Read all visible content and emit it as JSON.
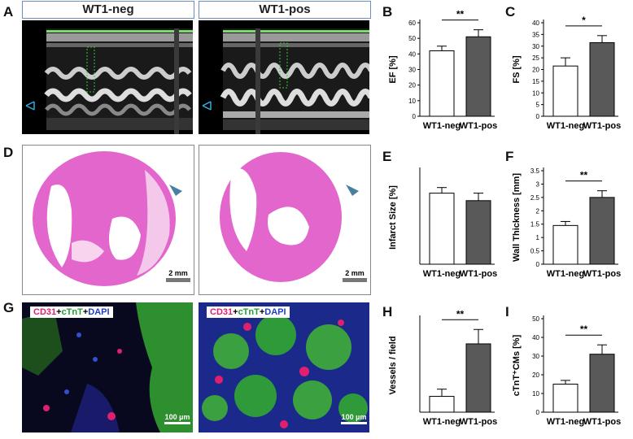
{
  "panel_letters": {
    "A": "A",
    "B": "B",
    "C": "C",
    "D": "D",
    "E": "E",
    "F": "F",
    "G": "G",
    "H": "H",
    "I": "I"
  },
  "echo": {
    "left_header": "WT1-neg",
    "right_header": "WT1-pos"
  },
  "histology": {
    "scale_left": "2 mm",
    "scale_right": "2 mm"
  },
  "immuno": {
    "label_parts": [
      {
        "text": "CD31",
        "color": "#e0206e"
      },
      {
        "text": "+",
        "color": "#000000"
      },
      {
        "text": "cTnT",
        "color": "#1aa033"
      },
      {
        "text": "+",
        "color": "#000000"
      },
      {
        "text": "DAPI",
        "color": "#1f3fc8"
      }
    ],
    "scale_left": "100 µm",
    "scale_right": "100 µm"
  },
  "colors": {
    "neg_bar": "#ffffff",
    "pos_bar": "#595959",
    "stain_pink": "#e266cc",
    "arrow": "#4a7fa0"
  },
  "chart_data": [
    {
      "id": "B",
      "type": "bar",
      "categories": [
        "WT1-neg",
        "WT1-pos"
      ],
      "values": [
        42,
        51
      ],
      "errors": [
        3,
        4.5
      ],
      "ylabel": "EF [%]",
      "ylim": [
        0,
        60
      ],
      "yticks": [
        0,
        10,
        20,
        30,
        40,
        50,
        60
      ],
      "significance": "**"
    },
    {
      "id": "C",
      "type": "bar",
      "categories": [
        "WT1-neg",
        "WT1-pos"
      ],
      "values": [
        21.5,
        31.5
      ],
      "errors": [
        3.5,
        3
      ],
      "ylabel": "FS [%]",
      "ylim": [
        0,
        40
      ],
      "yticks": [
        0,
        5,
        10,
        15,
        20,
        25,
        30,
        35,
        40
      ],
      "significance": "*"
    },
    {
      "id": "E",
      "type": "bar",
      "categories": [
        "WT1-neg",
        "WT1-pos"
      ],
      "values": [
        38,
        34
      ],
      "errors": [
        3,
        4
      ],
      "ylabel": "Infarct Size [%]",
      "ylim": [
        0,
        50
      ],
      "yticks": [],
      "significance": ""
    },
    {
      "id": "F",
      "type": "bar",
      "categories": [
        "WT1-neg",
        "WT1-pos"
      ],
      "values": [
        1.45,
        2.5
      ],
      "errors": [
        0.15,
        0.25
      ],
      "ylabel": "Wall Thickness [mm]",
      "ylim": [
        0,
        3.5
      ],
      "yticks": [
        0,
        0.5,
        1,
        1.5,
        2,
        2.5,
        3,
        3.5
      ],
      "significance": "**"
    },
    {
      "id": "H",
      "type": "bar",
      "categories": [
        "WT1-neg",
        "WT1-pos"
      ],
      "values": [
        22,
        95
      ],
      "errors": [
        10,
        20
      ],
      "ylabel": "Vessels / field",
      "ylim": [
        0,
        130
      ],
      "yticks": [],
      "significance": "**"
    },
    {
      "id": "I",
      "type": "bar",
      "categories": [
        "WT1-neg",
        "WT1-pos"
      ],
      "values": [
        15,
        31
      ],
      "errors": [
        2,
        5
      ],
      "ylabel": "cTnT⁺CMs [%]",
      "ylim": [
        0,
        50
      ],
      "yticks": [
        0,
        10,
        20,
        30,
        40,
        50
      ],
      "significance": "**"
    }
  ]
}
